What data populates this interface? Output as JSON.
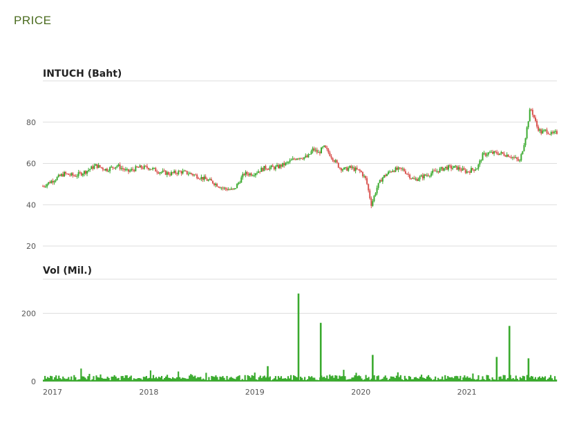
{
  "header": {
    "label": "PRICE"
  },
  "colors": {
    "up": "#3aaa2e",
    "down": "#d9534f",
    "volume": "#3aaa2e",
    "header": "#4a6b1e",
    "grid": "#dddddd"
  },
  "chart_data": [
    {
      "type": "candlestick",
      "title": "INTUCH (Baht)",
      "ylim": [
        20,
        100
      ],
      "yticks": [
        20,
        40,
        60,
        80
      ],
      "ytick_labels": [
        "20",
        "40",
        "60",
        "80"
      ],
      "xlim": [
        2017.0,
        2021.85
      ],
      "grid": true,
      "x": [
        2017.0,
        2017.1,
        2017.2,
        2017.3,
        2017.4,
        2017.5,
        2017.6,
        2017.7,
        2017.8,
        2017.9,
        2018.0,
        2018.1,
        2018.2,
        2018.3,
        2018.4,
        2018.5,
        2018.6,
        2018.7,
        2018.8,
        2018.9,
        2018.98,
        2019.02,
        2019.1,
        2019.2,
        2019.3,
        2019.4,
        2019.5,
        2019.55,
        2019.6,
        2019.65,
        2019.7,
        2019.8,
        2019.85,
        2019.9,
        2020.0,
        2020.05,
        2020.1,
        2020.15,
        2020.2,
        2020.25,
        2020.3,
        2020.4,
        2020.5,
        2020.6,
        2020.7,
        2020.8,
        2020.9,
        2021.0,
        2021.05,
        2021.1,
        2021.15,
        2021.2,
        2021.25,
        2021.3,
        2021.4,
        2021.5,
        2021.55,
        2021.6,
        2021.63,
        2021.66,
        2021.7,
        2021.75,
        2021.8,
        2021.85
      ],
      "close": [
        49,
        52,
        55,
        54,
        56,
        59,
        57,
        59,
        56,
        58,
        58,
        56,
        55,
        56,
        55,
        53,
        51,
        48,
        47,
        55,
        55,
        56,
        58,
        58,
        60,
        63,
        63,
        67,
        65,
        68,
        65,
        58,
        57,
        58,
        56,
        52,
        40,
        48,
        53,
        55,
        57,
        57,
        52,
        54,
        56,
        58,
        58,
        56,
        57,
        58,
        64,
        65,
        65,
        65,
        64,
        61,
        72,
        87,
        83,
        78,
        75,
        76,
        74,
        75
      ]
    },
    {
      "type": "bar",
      "title": "Vol (Mil.)",
      "ylim": [
        0,
        300
      ],
      "yticks": [
        0,
        200
      ],
      "ytick_labels": [
        "0",
        "200"
      ],
      "xtick_labels": [
        "2017",
        "2018",
        "2019",
        "2020",
        "2021"
      ],
      "xticks": [
        2017,
        2018,
        2019,
        2020,
        2021
      ],
      "grid": true,
      "spikes": [
        {
          "x": 2019.41,
          "value": 258
        },
        {
          "x": 2019.62,
          "value": 172
        },
        {
          "x": 2021.4,
          "value": 163
        },
        {
          "x": 2020.11,
          "value": 78
        },
        {
          "x": 2021.28,
          "value": 72
        },
        {
          "x": 2021.58,
          "value": 68
        },
        {
          "x": 2019.12,
          "value": 45
        }
      ],
      "baseline_level": 12
    }
  ]
}
